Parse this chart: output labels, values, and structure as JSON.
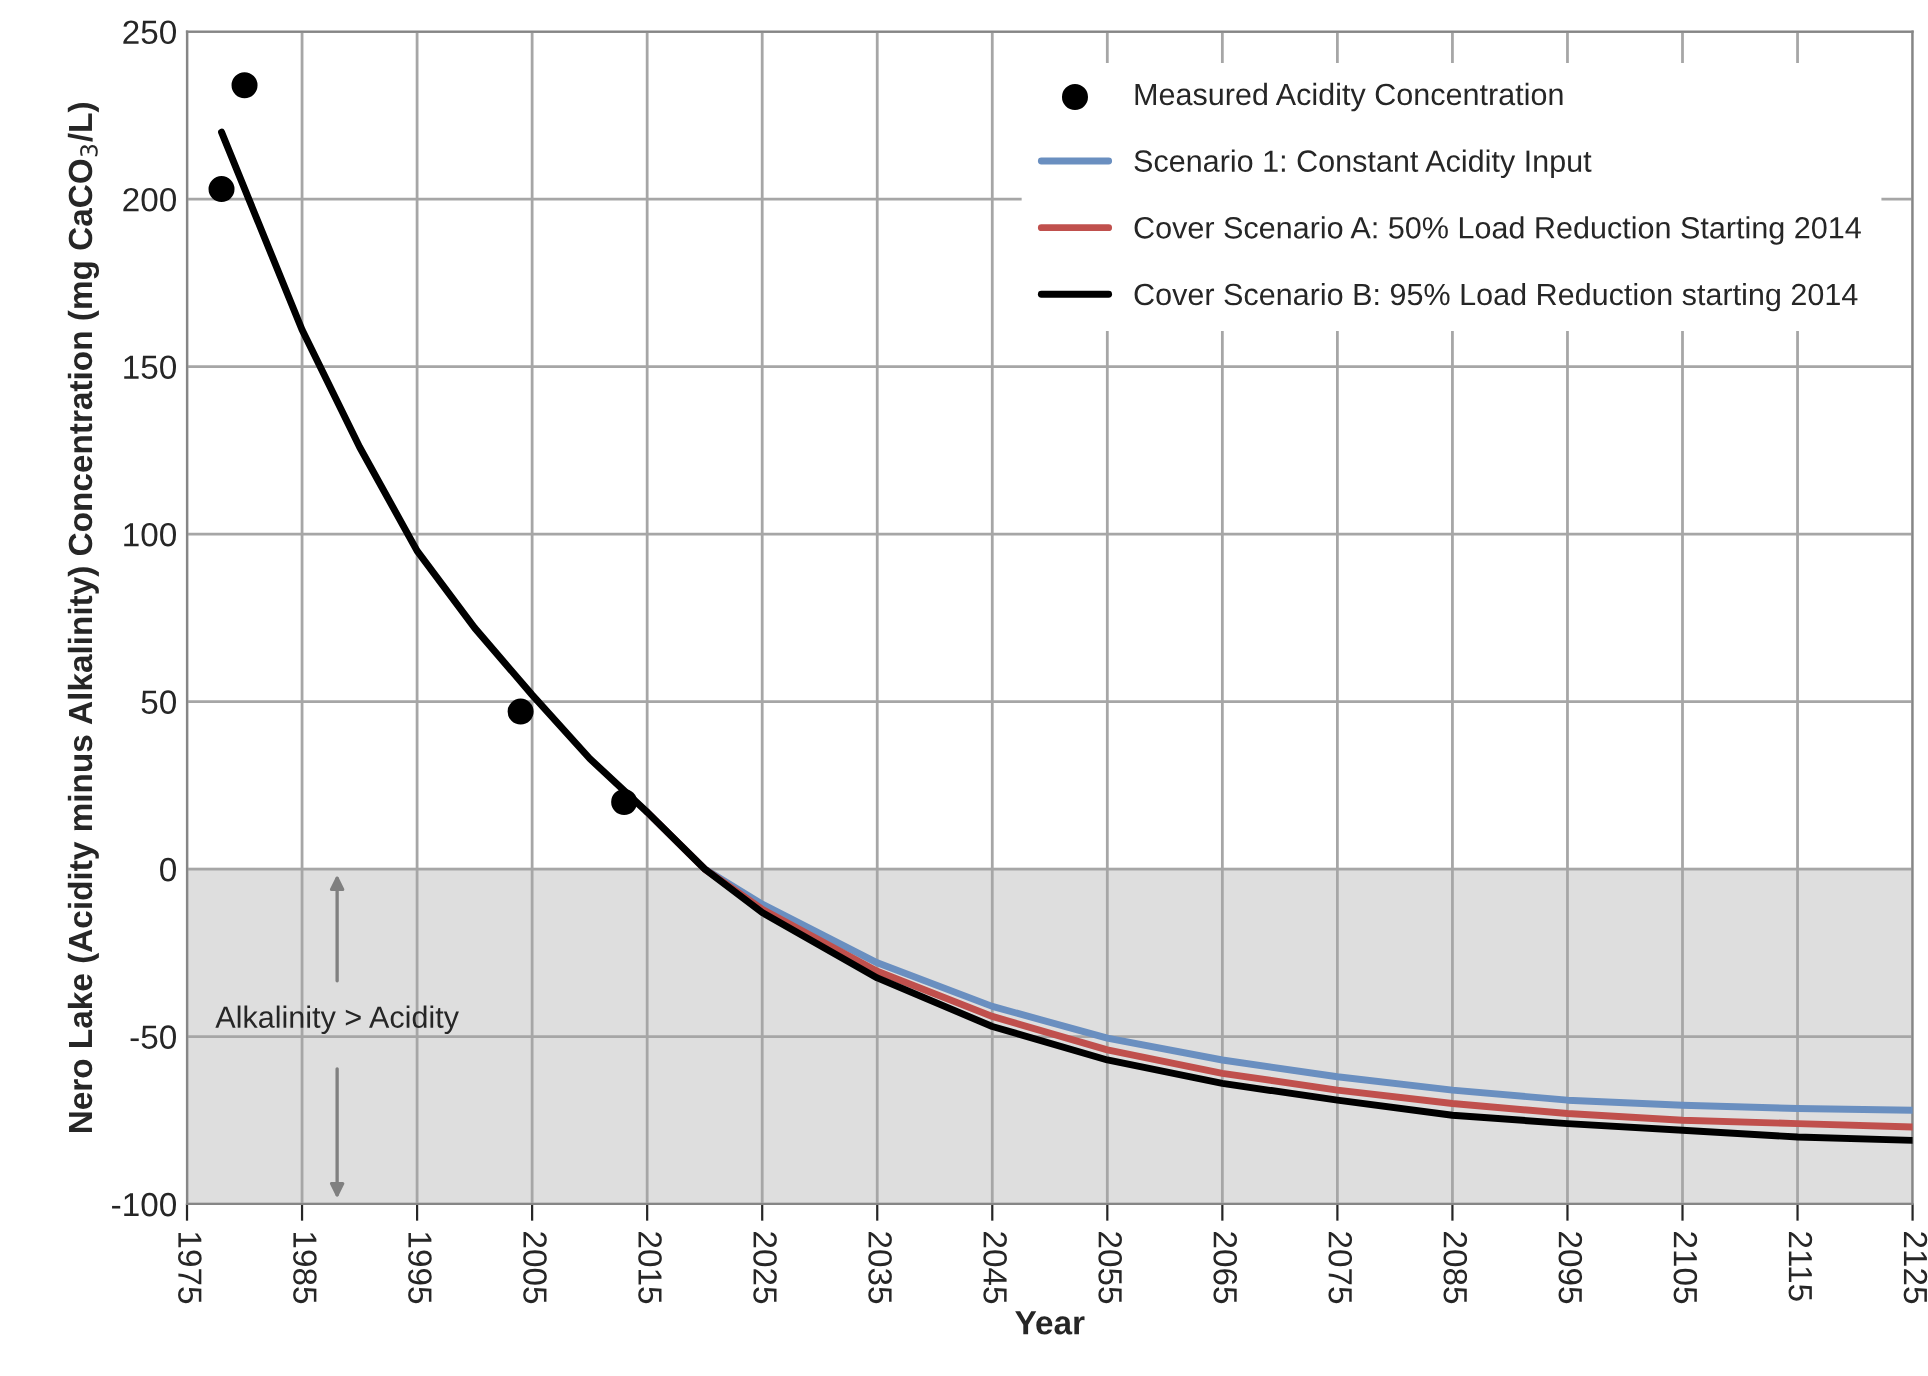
{
  "chart_data": {
    "type": "line",
    "xlabel": "Year",
    "ylabel": "Nero Lake (Acidity minus Alkalinity) Concentration (mg CaCO$_{3}$/L)",
    "xlim": [
      1975,
      2125
    ],
    "xticks": [
      1975,
      1985,
      1995,
      2005,
      2015,
      2025,
      2035,
      2045,
      2055,
      2065,
      2075,
      2085,
      2095,
      2105,
      2115,
      2125
    ],
    "ylim": [
      -100,
      250
    ],
    "yticks": [
      -100,
      -50,
      0,
      50,
      100,
      150,
      200,
      250
    ],
    "grid": true,
    "legend": "top right",
    "bands": [
      {
        "axis": "y",
        "from": -100,
        "to": 0,
        "label": "Alkalinity > Acidity",
        "color": "#d9d9d9"
      }
    ],
    "series": [
      {
        "name": "Measured Acidity Concentration",
        "type": "scatter",
        "color": "#000000",
        "marker": "circle",
        "x": [
          1978,
          1980,
          2004,
          2013
        ],
        "values": [
          203,
          234,
          47,
          20
        ]
      },
      {
        "name": "Scenario 1: Constant Acidity Input",
        "color": "#6a8fc0",
        "x": [
          2015,
          2020,
          2025,
          2035,
          2045,
          2055,
          2065,
          2075,
          2085,
          2095,
          2105,
          2115,
          2125
        ],
        "values": [
          17,
          0,
          -10.5,
          -28,
          -41,
          -50.5,
          -57,
          -62,
          -66,
          -69,
          -70.5,
          -71.5,
          -72
        ]
      },
      {
        "name": "Cover Scenario A: 50% Load Reduction Starting 2014",
        "color": "#c0504d",
        "x": [
          2015,
          2020,
          2025,
          2035,
          2045,
          2055,
          2065,
          2075,
          2085,
          2095,
          2105,
          2115,
          2125
        ],
        "values": [
          17,
          0,
          -12,
          -30.5,
          -44,
          -54,
          -61,
          -66,
          -70,
          -73,
          -75,
          -76,
          -77
        ]
      },
      {
        "name": "Cover Scenario B: 95% Load Reduction starting 2014",
        "color": "#000000",
        "x": [
          1978,
          1985,
          1990,
          1995,
          2000,
          2005,
          2010,
          2015,
          2020,
          2025,
          2035,
          2045,
          2055,
          2065,
          2075,
          2085,
          2095,
          2105,
          2115,
          2125
        ],
        "values": [
          220,
          161,
          126,
          95,
          72,
          52,
          33,
          17,
          0,
          -13,
          -32.5,
          -47,
          -57,
          -64,
          -69,
          -73.5,
          -76,
          -78,
          -80,
          -81
        ]
      }
    ]
  }
}
